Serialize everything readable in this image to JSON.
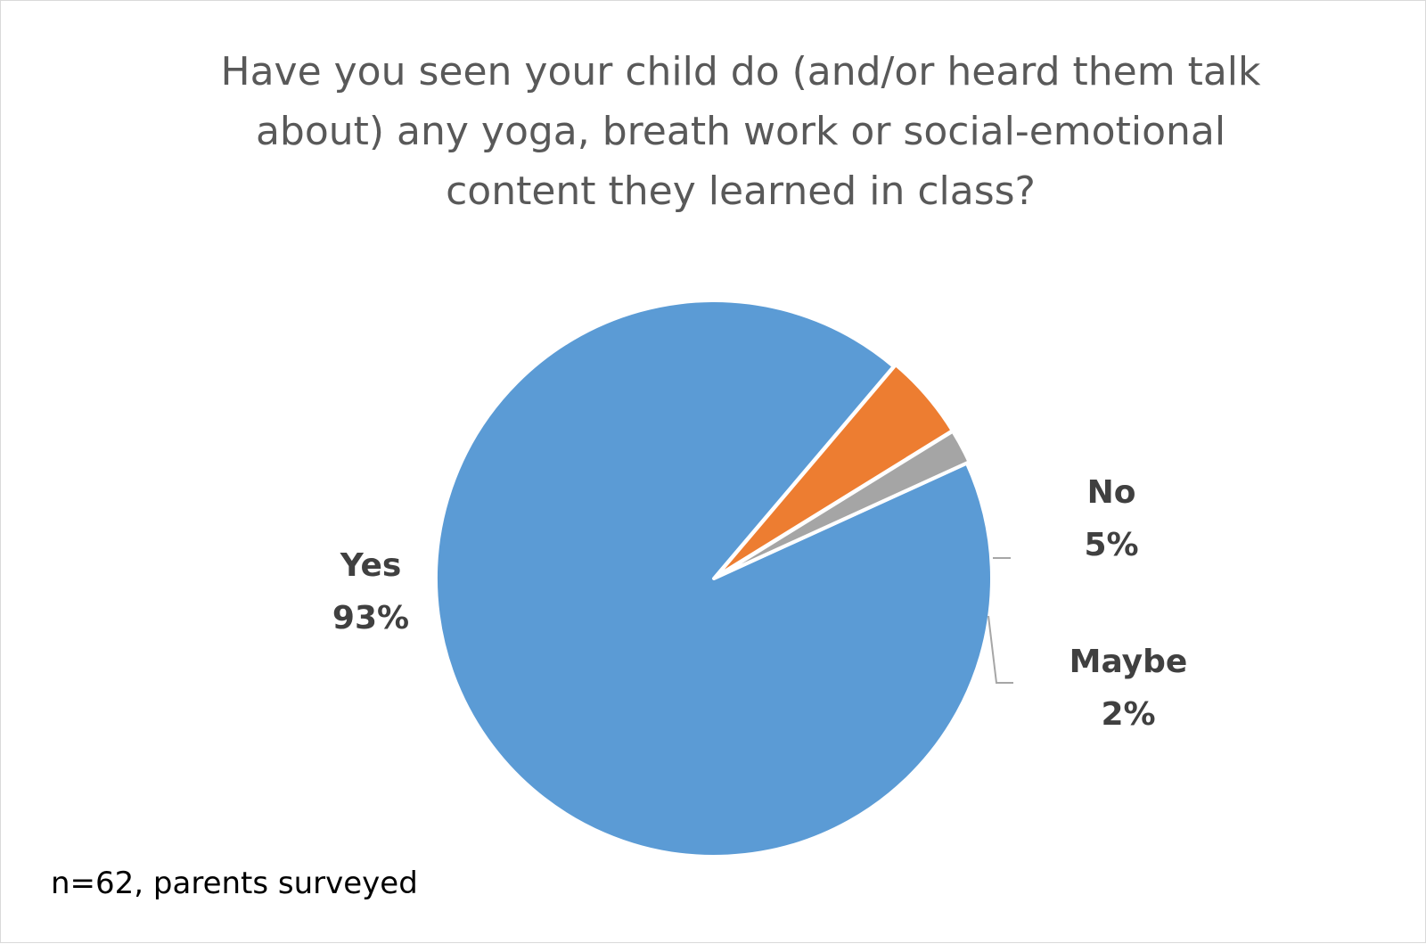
{
  "chart_data": {
    "type": "pie",
    "title": "Have you seen your child do (and/or heard them talk about) any yoga, breath work or social-emotional content they learned in class?",
    "categories": [
      "Yes",
      "No",
      "Maybe"
    ],
    "values": [
      93,
      5,
      2
    ],
    "value_labels": [
      "93%",
      "5%",
      "2%"
    ],
    "colors": [
      "#5b9bd5",
      "#ed7d31",
      "#a5a5a5"
    ],
    "legend": "none",
    "note": "n=62, parents surveyed"
  }
}
